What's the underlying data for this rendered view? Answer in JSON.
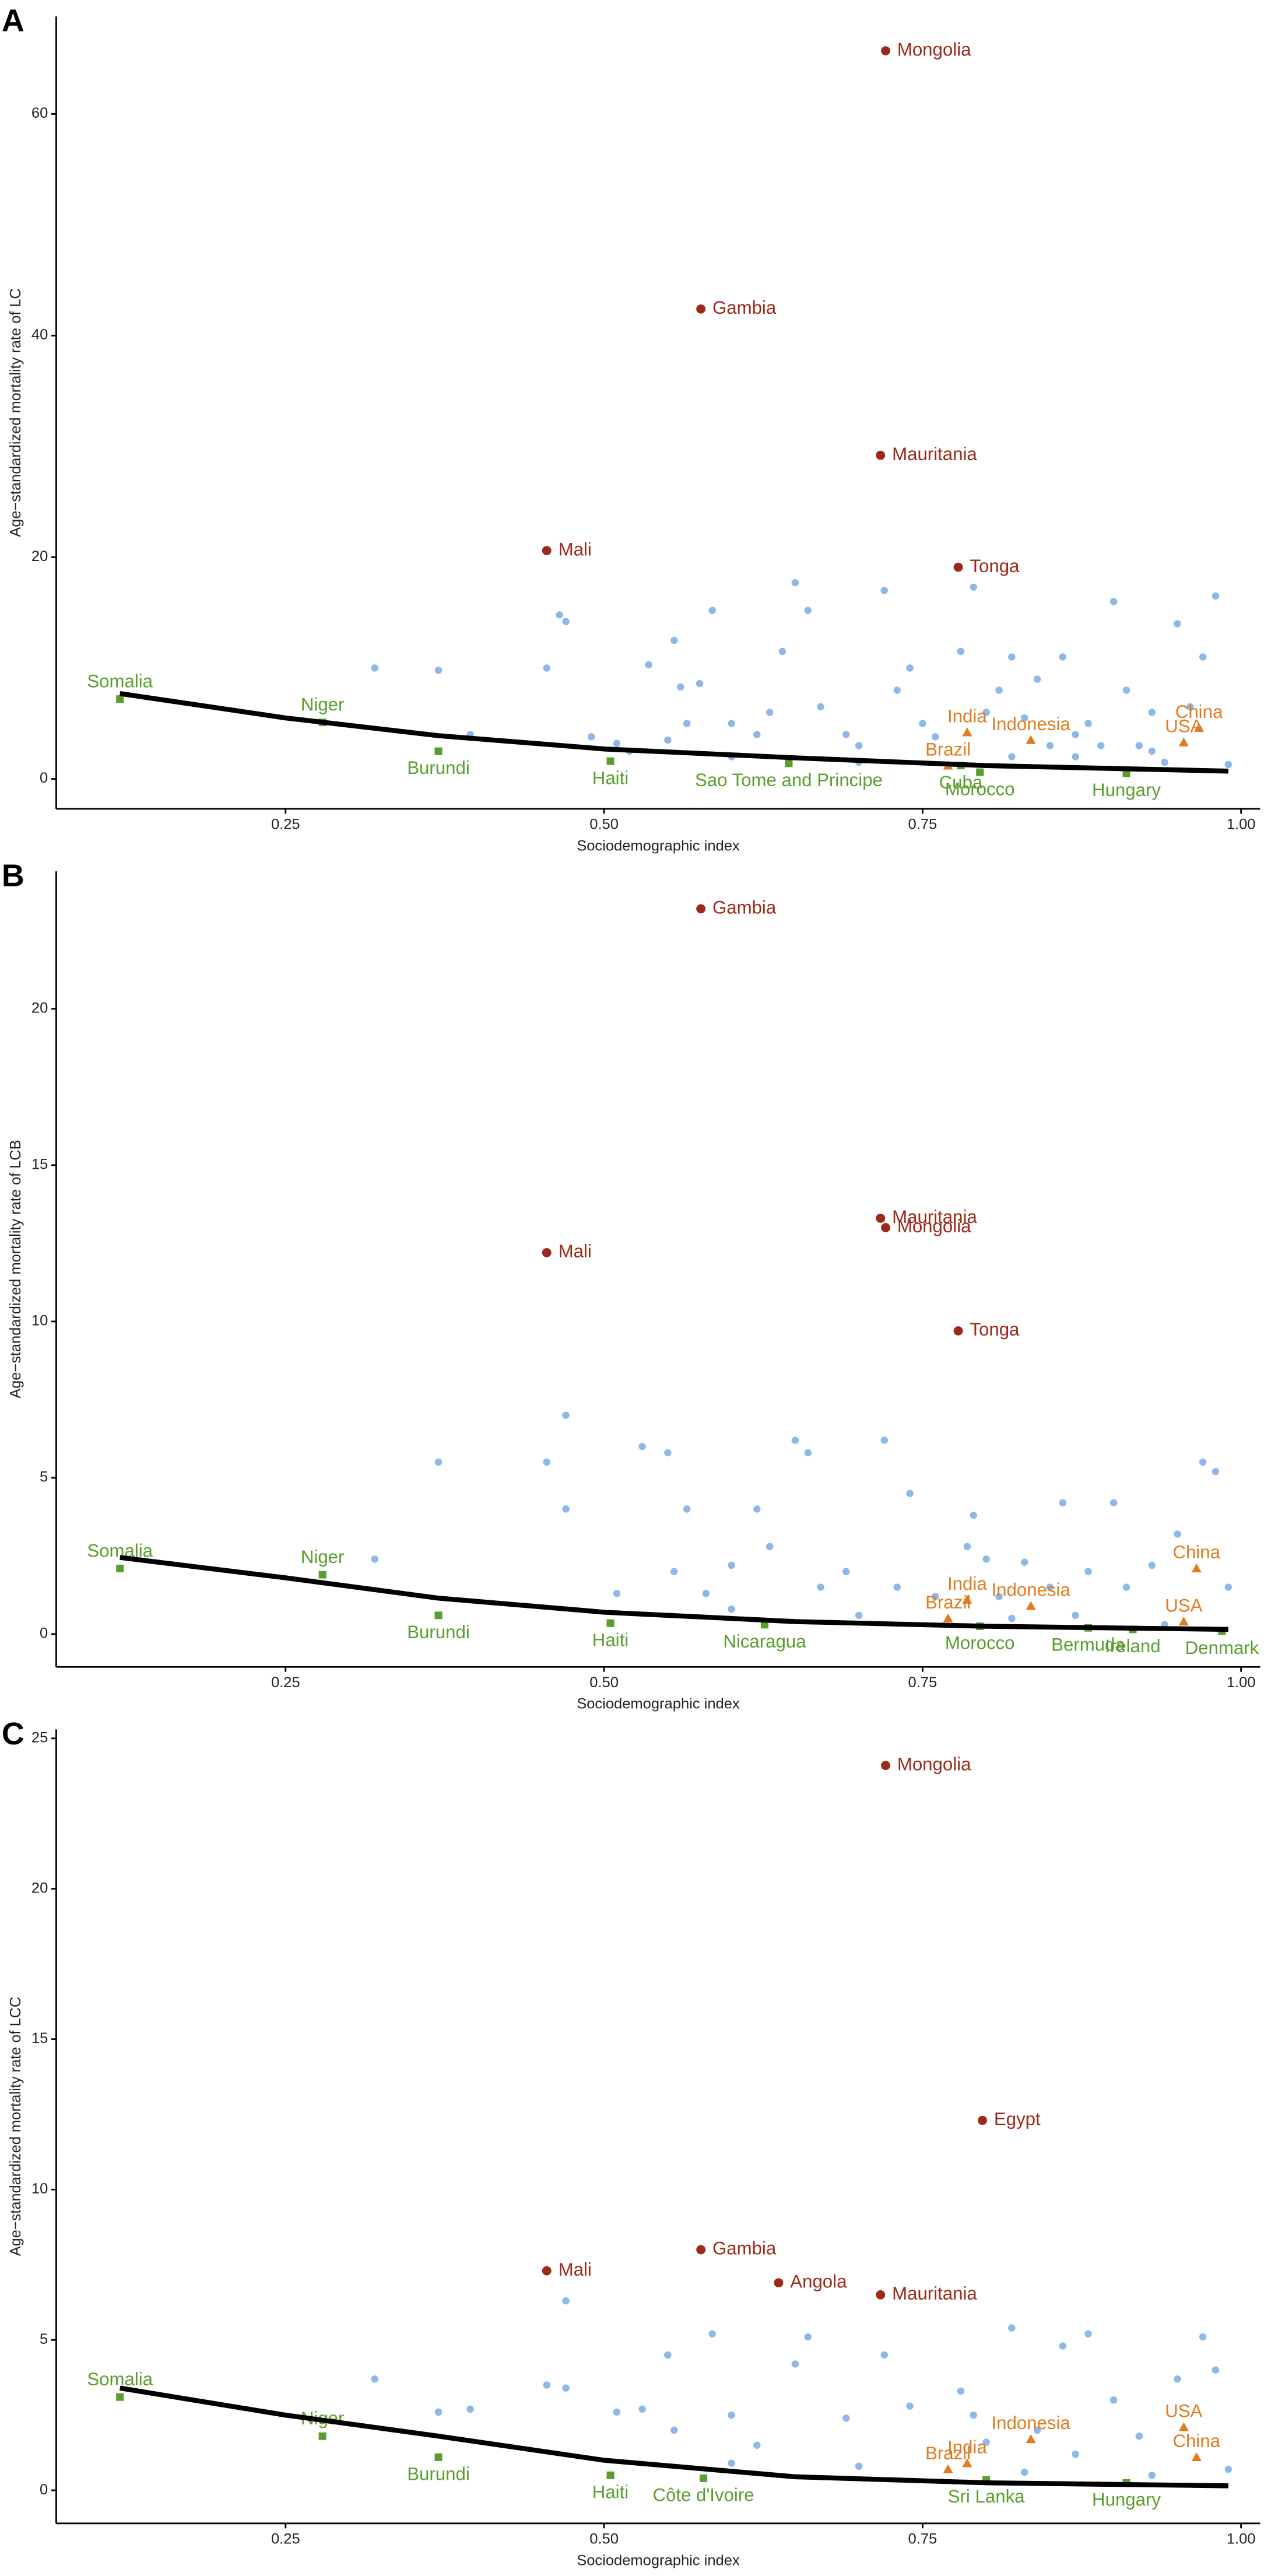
{
  "chart_data": [
    {
      "type": "scatter",
      "panel": "A",
      "xlabel": "Sociodemographic index",
      "ylabel": "Age−standardized mortality rate of LC",
      "xlim": [
        0.07,
        1.015
      ],
      "ylim": [
        -2.7,
        68.8
      ],
      "xticks": [
        0.25,
        {
          "value": 0.5,
          "label": "0.50"
        },
        0.75,
        {
          "value": 1,
          "label": "1.00"
        }
      ],
      "yticks": [
        0,
        20,
        40,
        60
      ],
      "series": [
        {
          "color": "#9b2a1a",
          "marker": "circle",
          "x": [
            0.721,
            0.576,
            0.717,
            0.455,
            0.778
          ],
          "values": [
            65.7,
            42.4,
            29.2,
            20.6,
            19.1
          ],
          "labels": [
            "Mongolia",
            "Gambia",
            "Mauritania",
            "Mali",
            "Tonga"
          ]
        },
        {
          "color": "#e07b20",
          "marker": "triangle",
          "x": [
            0.785,
            0.77,
            0.835,
            0.967,
            0.955
          ],
          "values": [
            4.2,
            1.2,
            3.5,
            4.6,
            3.3
          ],
          "labels": [
            "India",
            "Brazil",
            "Indonesia",
            "China",
            "USA"
          ]
        },
        {
          "color": "#5a9e2f",
          "marker": "square",
          "x": [
            0.12,
            0.279,
            0.37,
            0.505,
            0.645,
            0.78,
            0.795,
            0.91
          ],
          "values": [
            7.2,
            5.1,
            2.5,
            1.6,
            1.4,
            1.2,
            0.6,
            0.5
          ],
          "labels": [
            "Somalia",
            "Niger",
            "Burundi",
            "Haiti",
            "Sao Tome and Principe",
            "Cuba",
            "Morocco",
            "Hungary"
          ]
        },
        {
          "color": "#8db8e8",
          "marker": "dot",
          "x": [
            0.32,
            0.37,
            0.395,
            0.455,
            0.465,
            0.47,
            0.49,
            0.51,
            0.52,
            0.535,
            0.55,
            0.555,
            0.56,
            0.565,
            0.575,
            0.585,
            0.6,
            0.62,
            0.63,
            0.64,
            0.65,
            0.66,
            0.67,
            0.69,
            0.7,
            0.72,
            0.73,
            0.74,
            0.75,
            0.76,
            0.78,
            0.79,
            0.8,
            0.81,
            0.82,
            0.83,
            0.84,
            0.85,
            0.86,
            0.87,
            0.88,
            0.89,
            0.9,
            0.91,
            0.92,
            0.93,
            0.94,
            0.95,
            0.96,
            0.97,
            0.98,
            0.99,
            0.6,
            0.7,
            0.82,
            0.87,
            0.93
          ],
          "values": [
            10,
            9.8,
            4,
            10,
            14.8,
            14.2,
            3.8,
            3.2,
            2.5,
            10.3,
            3.5,
            12.5,
            8.3,
            5,
            8.6,
            15.2,
            5,
            4,
            6,
            11.5,
            17.7,
            15.2,
            6.5,
            4,
            3,
            17,
            8,
            10,
            5,
            3.8,
            11.5,
            17.3,
            6,
            8,
            11,
            5.5,
            9,
            3,
            11,
            2,
            5,
            3,
            16,
            8,
            3,
            6,
            1.5,
            14,
            6.5,
            11,
            16.5,
            1.3,
            2,
            1.5,
            2,
            4,
            2.5
          ]
        }
      ],
      "fit": {
        "color": "#000000",
        "x": [
          0.12,
          0.25,
          0.37,
          0.5,
          0.65,
          0.8,
          0.99
        ],
        "values": [
          7.7,
          5.5,
          3.9,
          2.7,
          1.9,
          1.2,
          0.7
        ]
      }
    },
    {
      "type": "scatter",
      "panel": "B",
      "xlabel": "Sociodemographic index",
      "ylabel": "Age−standardized mortality rate of LCB",
      "xlim": [
        0.07,
        1.015
      ],
      "ylim": [
        -1.05,
        24.4
      ],
      "xticks": [
        0.25,
        {
          "value": 0.5,
          "label": "0.50"
        },
        0.75,
        {
          "value": 1,
          "label": "1.00"
        }
      ],
      "yticks": [
        0,
        5,
        10,
        15,
        20
      ],
      "series": [
        {
          "color": "#9b2a1a",
          "marker": "circle",
          "x": [
            0.576,
            0.717,
            0.721,
            0.455,
            0.778
          ],
          "values": [
            23.2,
            13.3,
            13.0,
            12.2,
            9.7
          ],
          "labels": [
            "Gambia",
            "Mauritania",
            "Mongolia",
            "Mali",
            "Tonga"
          ]
        },
        {
          "color": "#e07b20",
          "marker": "triangle",
          "x": [
            0.965,
            0.785,
            0.835,
            0.77,
            0.955
          ],
          "values": [
            2.1,
            1.1,
            0.9,
            0.5,
            0.4
          ],
          "labels": [
            "China",
            "India",
            "Indonesia",
            "Brazil",
            "USA"
          ]
        },
        {
          "color": "#5a9e2f",
          "marker": "square",
          "x": [
            0.12,
            0.279,
            0.37,
            0.505,
            0.626,
            0.795,
            0.88,
            0.915,
            0.985
          ],
          "values": [
            2.1,
            1.9,
            0.6,
            0.35,
            0.3,
            0.25,
            0.2,
            0.15,
            0.1
          ],
          "labels": [
            "Somalia",
            "Niger",
            "Burundi",
            "Haiti",
            "Nicaragua",
            "Morocco",
            "Bermuda",
            "Ireland",
            "Denmark"
          ]
        },
        {
          "color": "#8db8e8",
          "marker": "dot",
          "x": [
            0.32,
            0.37,
            0.455,
            0.47,
            0.47,
            0.51,
            0.53,
            0.55,
            0.555,
            0.565,
            0.58,
            0.6,
            0.62,
            0.63,
            0.65,
            0.66,
            0.67,
            0.69,
            0.72,
            0.73,
            0.74,
            0.76,
            0.785,
            0.79,
            0.8,
            0.81,
            0.83,
            0.85,
            0.86,
            0.88,
            0.9,
            0.91,
            0.93,
            0.95,
            0.97,
            0.98,
            0.99,
            0.6,
            0.7,
            0.82,
            0.87,
            0.94
          ],
          "values": [
            2.4,
            5.5,
            5.5,
            7,
            4,
            1.3,
            6,
            5.8,
            2,
            4,
            1.3,
            2.2,
            4,
            2.8,
            6.2,
            5.8,
            1.5,
            2,
            6.2,
            1.5,
            4.5,
            1.2,
            2.8,
            3.8,
            2.4,
            1.2,
            2.3,
            1.5,
            4.2,
            2,
            4.2,
            1.5,
            2.2,
            3.2,
            5.5,
            5.2,
            1.5,
            0.8,
            0.6,
            0.5,
            0.6,
            0.3
          ]
        }
      ],
      "fit": {
        "color": "#000000",
        "x": [
          0.12,
          0.25,
          0.37,
          0.5,
          0.65,
          0.8,
          0.99
        ],
        "values": [
          2.45,
          1.8,
          1.15,
          0.7,
          0.4,
          0.25,
          0.15
        ]
      }
    },
    {
      "type": "scatter",
      "panel": "C",
      "xlabel": "Sociodemographic index",
      "ylabel": "Age−standardized mortality rate of LCC",
      "xlim": [
        0.07,
        1.015
      ],
      "ylim": [
        -1.1,
        25.3
      ],
      "xticks": [
        0.25,
        {
          "value": 0.5,
          "label": "0.50"
        },
        0.75,
        {
          "value": 1,
          "label": "1.00"
        }
      ],
      "yticks": [
        0,
        5,
        10,
        15,
        20,
        25
      ],
      "series": [
        {
          "color": "#9b2a1a",
          "marker": "circle",
          "x": [
            0.721,
            0.797,
            0.576,
            0.455,
            0.637,
            0.717
          ],
          "values": [
            24.1,
            12.3,
            8.0,
            7.3,
            6.9,
            6.5
          ],
          "labels": [
            "Mongolia",
            "Egypt",
            "Gambia",
            "Mali",
            "Angola",
            "Mauritania"
          ]
        },
        {
          "color": "#e07b20",
          "marker": "triangle",
          "x": [
            0.835,
            0.955,
            0.785,
            0.965,
            0.77
          ],
          "values": [
            1.7,
            2.1,
            0.9,
            1.1,
            0.7
          ],
          "labels": [
            "Indonesia",
            "USA",
            "India",
            "China",
            "Brazil"
          ]
        },
        {
          "color": "#5a9e2f",
          "marker": "square",
          "x": [
            0.12,
            0.279,
            0.37,
            0.505,
            0.578,
            0.8,
            0.91
          ],
          "values": [
            3.1,
            1.8,
            1.1,
            0.5,
            0.4,
            0.35,
            0.25
          ],
          "labels": [
            "Somalia",
            "Niger",
            "Burundi",
            "Haiti",
            "Côte d'Ivoire",
            "Sri Lanka",
            "Hungary"
          ]
        },
        {
          "color": "#8db8e8",
          "marker": "dot",
          "x": [
            0.32,
            0.37,
            0.395,
            0.455,
            0.47,
            0.47,
            0.51,
            0.53,
            0.55,
            0.555,
            0.585,
            0.6,
            0.62,
            0.65,
            0.66,
            0.69,
            0.72,
            0.74,
            0.78,
            0.79,
            0.8,
            0.82,
            0.84,
            0.86,
            0.88,
            0.9,
            0.92,
            0.95,
            0.97,
            0.98,
            0.99,
            0.6,
            0.7,
            0.83,
            0.87,
            0.93
          ],
          "values": [
            3.7,
            2.6,
            2.7,
            3.5,
            3.4,
            6.3,
            2.6,
            2.7,
            4.5,
            2,
            5.2,
            2.5,
            1.5,
            4.2,
            5.1,
            2.4,
            4.5,
            2.8,
            3.3,
            2.5,
            1.6,
            5.4,
            2,
            4.8,
            5.2,
            3,
            1.8,
            3.7,
            5.1,
            4,
            0.7,
            0.9,
            0.8,
            0.6,
            1.2,
            0.5
          ]
        }
      ],
      "fit": {
        "color": "#000000",
        "x": [
          0.12,
          0.25,
          0.37,
          0.5,
          0.65,
          0.8,
          0.99
        ],
        "values": [
          3.4,
          2.5,
          1.8,
          1.0,
          0.45,
          0.25,
          0.15
        ]
      }
    }
  ]
}
